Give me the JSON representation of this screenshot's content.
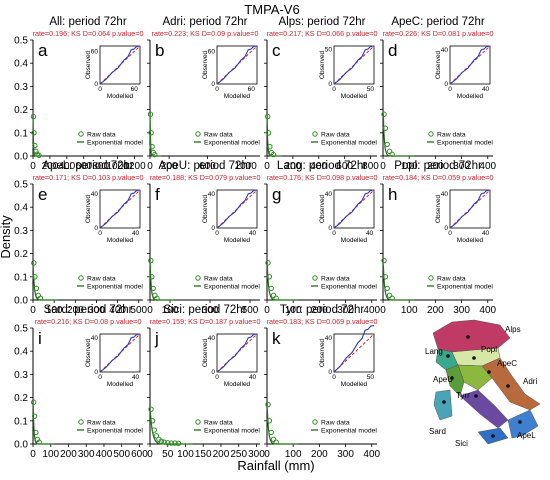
{
  "figure": {
    "title": "TMPA-V6",
    "ylabel": "Density",
    "xlabel": "Rainfall (mm)",
    "legend": {
      "raw": "Raw data",
      "model": "Exponential model"
    },
    "inset": {
      "xlabel": "Modelled",
      "ylabel": "Observed"
    },
    "colors": {
      "raw": "#2e8b22",
      "model": "#1f6f14",
      "stats": "#d4232c",
      "qq_obs": "#2a36b8",
      "qq_ref": "#d4232c"
    }
  },
  "chart_data": [
    {
      "type": "scatter",
      "letter": "a",
      "title": "All: period 72hr",
      "stats": "rate=0.196; KS D=0.064 p.value=0",
      "xticks": [
        "0",
        "200",
        "400",
        "600",
        "800",
        "1000",
        "1200"
      ],
      "xlim": [
        0,
        1300
      ],
      "yticks": [
        "0.0",
        "0.1",
        "0.2",
        "0.3",
        "0.4",
        "0.5"
      ],
      "ylim": [
        0,
        0.5
      ],
      "rate": 0.196,
      "points": [
        [
          5,
          0.17
        ],
        [
          12,
          0.1
        ],
        [
          22,
          0.045
        ],
        [
          35,
          0.02
        ],
        [
          50,
          0.008
        ],
        [
          70,
          0.003
        ]
      ],
      "inset": {
        "xticks": [
          "0",
          "60"
        ],
        "xmax": 70,
        "yticks": [
          "0",
          "60"
        ],
        "ymax": 70
      }
    },
    {
      "type": "scatter",
      "letter": "b",
      "title": "Adri: period 72hr",
      "stats": "rate=0.223; KS D=0.09 p.value=0",
      "xticks": [
        "0",
        "200",
        "600",
        "1000"
      ],
      "xlim": [
        0,
        1150
      ],
      "yticks": [],
      "ylim": [
        0,
        0.5
      ],
      "rate": 0.223,
      "points": [
        [
          5,
          0.18
        ],
        [
          12,
          0.1
        ],
        [
          22,
          0.04
        ],
        [
          35,
          0.015
        ],
        [
          50,
          0.006
        ]
      ],
      "inset": {
        "xticks": [
          "0",
          "60"
        ],
        "xmax": 70,
        "yticks": [
          "0",
          "60"
        ],
        "ymax": 70
      }
    },
    {
      "type": "scatter",
      "letter": "c",
      "title": "Alps: period 72hr",
      "stats": "rate=0.217; KS D=0.066 p.value=0",
      "xticks": [
        "0",
        "200",
        "400",
        "600",
        "800"
      ],
      "xlim": [
        0,
        850
      ],
      "yticks": [],
      "ylim": [
        0,
        0.5
      ],
      "rate": 0.217,
      "points": [
        [
          5,
          0.17
        ],
        [
          12,
          0.1
        ],
        [
          22,
          0.04
        ],
        [
          35,
          0.015
        ],
        [
          50,
          0.006
        ]
      ],
      "inset": {
        "xticks": [
          "0",
          "50"
        ],
        "xmax": 55,
        "yticks": [
          "0",
          "50"
        ],
        "ymax": 55
      }
    },
    {
      "type": "scatter",
      "letter": "d",
      "title": "ApeC: period 72hr",
      "stats": "rate=0.226; KS D=0.081 p.value=0",
      "xticks": [
        "0",
        "100",
        "200",
        "300",
        "400"
      ],
      "xlim": [
        0,
        420
      ],
      "yticks": [],
      "ylim": [
        0,
        0.5
      ],
      "rate": 0.226,
      "points": [
        [
          4,
          0.18
        ],
        [
          9,
          0.12
        ],
        [
          16,
          0.05
        ],
        [
          25,
          0.02
        ],
        [
          35,
          0.007
        ]
      ],
      "inset": {
        "xticks": [
          "0",
          "40"
        ],
        "xmax": 45,
        "yticks": [
          "0",
          "40"
        ],
        "ymax": 45
      }
    },
    {
      "type": "scatter",
      "letter": "e",
      "title": "ApeL: period 72hr",
      "stats": "rate=0.171; KS D=0.103 p.value=0",
      "xticks": [
        "0",
        "100",
        "200",
        "300",
        "400",
        "500"
      ],
      "xlim": [
        0,
        520
      ],
      "yticks": [
        "0.0",
        "0.1",
        "0.2",
        "0.3",
        "0.4",
        "0.5"
      ],
      "ylim": [
        0,
        0.5
      ],
      "rate": 0.171,
      "points": [
        [
          4,
          0.16
        ],
        [
          9,
          0.1
        ],
        [
          16,
          0.05
        ],
        [
          25,
          0.02
        ],
        [
          35,
          0.008
        ]
      ],
      "inset": {
        "xticks": [
          "0",
          "40"
        ],
        "xmax": 45,
        "yticks": [
          "0",
          "40"
        ],
        "ymax": 45
      }
    },
    {
      "type": "scatter",
      "letter": "f",
      "title": "ApeU: period 72hr",
      "stats": "rate=0.188; KS D=0.079 p.value=0",
      "xticks": [
        "0",
        "100",
        "300",
        "500"
      ],
      "xlim": [
        0,
        550
      ],
      "yticks": [],
      "ylim": [
        0,
        0.5
      ],
      "rate": 0.188,
      "points": [
        [
          4,
          0.17
        ],
        [
          9,
          0.1
        ],
        [
          16,
          0.05
        ],
        [
          25,
          0.02
        ],
        [
          35,
          0.007
        ]
      ],
      "inset": {
        "xticks": [
          "0",
          "40"
        ],
        "xmax": 45,
        "yticks": [
          "0",
          "40"
        ],
        "ymax": 45
      }
    },
    {
      "type": "scatter",
      "letter": "g",
      "title": "Lang: period 72hr",
      "stats": "rate=0.176; KS D=0.098 p.value=0",
      "xticks": [
        "0",
        "100",
        "200",
        "300",
        "400"
      ],
      "xlim": [
        0,
        420
      ],
      "yticks": [],
      "ylim": [
        0,
        0.5
      ],
      "rate": 0.176,
      "points": [
        [
          4,
          0.16
        ],
        [
          9,
          0.1
        ],
        [
          16,
          0.05
        ],
        [
          25,
          0.02
        ],
        [
          35,
          0.008
        ]
      ],
      "inset": {
        "xticks": [
          "0",
          "40"
        ],
        "xmax": 45,
        "yticks": [
          "0",
          "40"
        ],
        "ymax": 45
      }
    },
    {
      "type": "scatter",
      "letter": "h",
      "title": "Popl: period 72hr",
      "stats": "rate=0.184; KS D=0.059 p.value=0",
      "xticks": [
        "0",
        "100",
        "200",
        "300",
        "400"
      ],
      "xlim": [
        0,
        420
      ],
      "yticks": [],
      "ylim": [
        0,
        0.5
      ],
      "rate": 0.184,
      "points": [
        [
          4,
          0.17
        ],
        [
          9,
          0.1
        ],
        [
          16,
          0.05
        ],
        [
          25,
          0.02
        ],
        [
          35,
          0.008
        ]
      ],
      "inset": {
        "xticks": [
          "0",
          "40"
        ],
        "xmax": 45,
        "yticks": [
          "0",
          "40"
        ],
        "ymax": 45
      }
    },
    {
      "type": "scatter",
      "letter": "i",
      "title": "Sard: period 72hr",
      "stats": "rate=0.216; KS D=0.08 p.value=0",
      "xticks": [
        "0",
        "100",
        "200",
        "300",
        "400",
        "500",
        "600"
      ],
      "xlim": [
        0,
        620
      ],
      "yticks": [
        "0.0",
        "0.1",
        "0.2",
        "0.3",
        "0.4",
        "0.5"
      ],
      "ylim": [
        0,
        0.5
      ],
      "rate": 0.216,
      "points": [
        [
          4,
          0.18
        ],
        [
          9,
          0.12
        ],
        [
          16,
          0.05
        ],
        [
          25,
          0.02
        ],
        [
          35,
          0.008
        ]
      ],
      "inset": {
        "xticks": [
          "0",
          "40"
        ],
        "xmax": 45,
        "yticks": [
          "0",
          "40"
        ],
        "ymax": 45
      }
    },
    {
      "type": "scatter",
      "letter": "j",
      "title": "Sici: period 72hr",
      "stats": "rate=0.159; KS D=0.187 p.value=0",
      "xticks": [
        "0",
        "50",
        "100",
        "150",
        "200",
        "250",
        "300"
      ],
      "xlim": [
        0,
        310
      ],
      "yticks": [],
      "ylim": [
        0,
        0.5
      ],
      "rate": 0.159,
      "points": [
        [
          3,
          0.15
        ],
        [
          7,
          0.1
        ],
        [
          12,
          0.06
        ],
        [
          18,
          0.035
        ],
        [
          25,
          0.02
        ],
        [
          32,
          0.012
        ],
        [
          40,
          0.008
        ],
        [
          50,
          0.005
        ],
        [
          60,
          0.004
        ],
        [
          70,
          0.004
        ],
        [
          80,
          0.003
        ]
      ],
      "inset": {
        "xticks": [
          "0",
          "40"
        ],
        "xmax": 45,
        "yticks": [
          "0",
          "40"
        ],
        "ymax": 45
      }
    },
    {
      "type": "scatter",
      "letter": "k",
      "title": "Tyrr: period 72hr",
      "stats": "rate=0.183; KS D=0.069 p.value=0",
      "xticks": [
        "0",
        "100",
        "200",
        "300",
        "400"
      ],
      "xlim": [
        0,
        420
      ],
      "yticks": [],
      "ylim": [
        0,
        0.5
      ],
      "rate": 0.183,
      "points": [
        [
          4,
          0.17
        ],
        [
          9,
          0.1
        ],
        [
          16,
          0.05
        ],
        [
          25,
          0.02
        ],
        [
          35,
          0.008
        ]
      ],
      "inset": {
        "xticks": [
          "0",
          "50"
        ],
        "xmax": 55,
        "yticks": [
          "0",
          "40"
        ],
        "ymax": 45
      }
    }
  ],
  "map": {
    "labels": [
      "Alps",
      "Lang",
      "Popl",
      "ApeC",
      "ApeU",
      "Tyrr",
      "Adri",
      "Sard",
      "ApeL",
      "Sici"
    ]
  }
}
